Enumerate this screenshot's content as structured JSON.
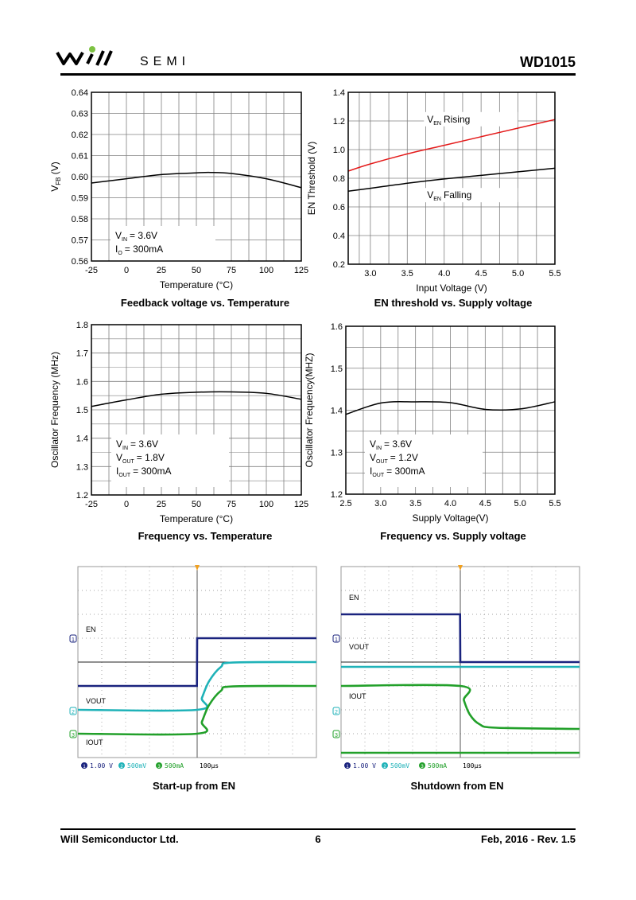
{
  "header": {
    "brand": "SEMI",
    "part_number": "WD1015"
  },
  "colors": {
    "rising": "#e41a1a",
    "curve": "#000000",
    "grid": "#808080",
    "logo_green": "#7dc242",
    "scope_blue": "#1a237e",
    "scope_cyan": "#1fb2b8",
    "scope_green": "#22a02a"
  },
  "chart_data": [
    {
      "id": "fb-temp",
      "type": "line",
      "caption": "Feedback voltage vs. Temperature",
      "xlabel": "Temperature (°C)",
      "ylabel": "V_FB (V)",
      "xlim": [
        -25,
        125
      ],
      "ylim": [
        0.56,
        0.64
      ],
      "xticks": [
        -25,
        0,
        25,
        50,
        75,
        100,
        125
      ],
      "yticks": [
        0.56,
        0.57,
        0.58,
        0.59,
        0.6,
        0.61,
        0.62,
        0.63,
        0.64
      ],
      "xtick_labels": [
        "-25",
        "0",
        "25",
        "50",
        "75",
        "100",
        "125"
      ],
      "ytick_labels": [
        "0.56",
        "0.57",
        "0.58",
        "0.59",
        "0.60",
        "0.61",
        "0.62",
        "0.63",
        "0.64"
      ],
      "series": [
        {
          "name": "V_FB",
          "color": "#000000",
          "x": [
            -25,
            0,
            25,
            50,
            60,
            75,
            100,
            125
          ],
          "y": [
            0.597,
            0.599,
            0.601,
            0.6018,
            0.602,
            0.6015,
            0.599,
            0.5948
          ]
        }
      ],
      "legend": [
        {
          "label": "V",
          "sub": "IN",
          "value": "= 3.6V"
        },
        {
          "label": "I",
          "sub": "O",
          "value": "= 300mA"
        }
      ],
      "series_labels": []
    },
    {
      "id": "en-threshold",
      "type": "line",
      "caption": "EN threshold vs. Supply voltage",
      "xlabel": "Input Voltage (V)",
      "ylabel": "EN Threshold (V)",
      "xlim": [
        2.7,
        5.5
      ],
      "ylim": [
        0.2,
        1.4
      ],
      "xticks": [
        2.7,
        3.0,
        3.5,
        4.0,
        4.5,
        5.0,
        5.5
      ],
      "yticks": [
        0.2,
        0.4,
        0.6,
        0.8,
        1.0,
        1.2,
        1.4
      ],
      "xtick_labels": [
        "",
        "3.0",
        "3.5",
        "4.0",
        "4.5",
        "5.0",
        "5.5"
      ],
      "ytick_labels": [
        "0.2",
        "0.4",
        "0.6",
        "0.8",
        "1.0",
        "1.2",
        "1.4"
      ],
      "series": [
        {
          "name": "V_EN Rising",
          "color": "#e41a1a",
          "x": [
            2.7,
            3.0,
            3.5,
            4.0,
            4.5,
            5.0,
            5.5
          ],
          "y": [
            0.85,
            0.9,
            0.97,
            1.03,
            1.09,
            1.15,
            1.21
          ]
        },
        {
          "name": "V_EN Falling",
          "color": "#000000",
          "x": [
            2.7,
            3.0,
            3.5,
            4.0,
            4.5,
            5.0,
            5.5
          ],
          "y": [
            0.71,
            0.73,
            0.765,
            0.795,
            0.82,
            0.845,
            0.87
          ]
        }
      ],
      "legend": [],
      "series_labels": [
        {
          "label": "V",
          "sub": "EN",
          "value": "Rising"
        },
        {
          "label": "V",
          "sub": "EN",
          "value": "Falling"
        }
      ]
    },
    {
      "id": "freq-temp",
      "type": "line",
      "caption": "Frequency vs. Temperature",
      "xlabel": "Temperature (°C)",
      "ylabel": "Oscillator Frequency (MHz)",
      "xlim": [
        -25,
        125
      ],
      "ylim": [
        1.2,
        1.8
      ],
      "xticks": [
        -25,
        0,
        25,
        50,
        75,
        100,
        125
      ],
      "yticks": [
        1.2,
        1.3,
        1.4,
        1.5,
        1.6,
        1.7,
        1.8
      ],
      "xtick_labels": [
        "-25",
        "0",
        "25",
        "50",
        "75",
        "100",
        "125"
      ],
      "ytick_labels": [
        "1.2",
        "1.3",
        "1.4",
        "1.5",
        "1.6",
        "1.7",
        "1.8"
      ],
      "series": [
        {
          "name": "Fosc",
          "color": "#000000",
          "x": [
            -25,
            0,
            25,
            50,
            75,
            100,
            125
          ],
          "y": [
            1.512,
            1.535,
            1.555,
            1.562,
            1.563,
            1.558,
            1.537
          ]
        }
      ],
      "legend": [
        {
          "label": "V",
          "sub": "IN",
          "value": "= 3.6V"
        },
        {
          "label": "V",
          "sub": "OUT",
          "value": "= 1.8V"
        },
        {
          "label": "I",
          "sub": "OUT",
          "value": "= 300mA"
        }
      ],
      "series_labels": []
    },
    {
      "id": "freq-supply",
      "type": "line",
      "caption": "Frequency vs. Supply voltage",
      "xlabel": "Supply Voltage(V)",
      "ylabel": "Oscillator Frequency(MHZ)",
      "xlim": [
        2.5,
        5.5
      ],
      "ylim": [
        1.2,
        1.6
      ],
      "xticks": [
        2.5,
        3.0,
        3.5,
        4.0,
        4.5,
        5.0,
        5.5
      ],
      "yticks": [
        1.2,
        1.3,
        1.4,
        1.5,
        1.6
      ],
      "xtick_labels": [
        "2.5",
        "3.0",
        "3.5",
        "4.0",
        "4.5",
        "5.0",
        "5.5"
      ],
      "ytick_labels": [
        "1.2",
        "1.3",
        "1.4",
        "1.5",
        "1.6"
      ],
      "series": [
        {
          "name": "Fosc",
          "color": "#000000",
          "x": [
            2.5,
            3.0,
            3.5,
            4.0,
            4.5,
            5.0,
            5.5
          ],
          "y": [
            1.39,
            1.417,
            1.42,
            1.418,
            1.402,
            1.403,
            1.42
          ]
        }
      ],
      "legend": [
        {
          "label": "V",
          "sub": "IN",
          "value": "= 3.6V"
        },
        {
          "label": "V",
          "sub": "OUT",
          "value": "= 1.2V"
        },
        {
          "label": "I",
          "sub": "OUT",
          "value": "= 300mA"
        }
      ],
      "series_labels": []
    },
    {
      "id": "startup",
      "type": "line",
      "caption": "Start-up from EN",
      "trace_labels": [
        "EN",
        "VOUT",
        "IOUT"
      ],
      "channel_numbers": [
        "1",
        "2",
        "3"
      ],
      "scale_labels": [
        "1.00 V",
        "500mV",
        "500mA",
        "100μs"
      ],
      "series": [
        {
          "name": "EN",
          "x": [
            0,
            4.99,
            5.0,
            10
          ],
          "y": [
            -1.0,
            -1.0,
            1.0,
            1.0
          ]
        },
        {
          "name": "VOUT",
          "x": [
            0,
            5.0,
            5.2,
            5.5,
            6.0,
            6.5,
            10
          ],
          "y": [
            -2.0,
            -2.0,
            -1.5,
            -0.8,
            -0.2,
            -0.02,
            0.0
          ]
        },
        {
          "name": "IOUT",
          "x": [
            0,
            5.0,
            5.2,
            5.5,
            6.0,
            6.5,
            10
          ],
          "y": [
            -3.0,
            -3.0,
            -2.5,
            -1.8,
            -1.2,
            -1.02,
            -1.0
          ]
        }
      ]
    },
    {
      "id": "shutdown",
      "type": "line",
      "caption": "Shutdown from EN",
      "trace_labels": [
        "EN",
        "VOUT",
        "IOUT"
      ],
      "channel_numbers": [
        "1",
        "2",
        "3"
      ],
      "scale_labels": [
        "1.00 V",
        "500mV",
        "500mA",
        "100μs"
      ],
      "series": [
        {
          "name": "EN",
          "x": [
            0,
            4.99,
            5.0,
            10
          ],
          "y": [
            2.0,
            2.0,
            0.0,
            0.0
          ]
        },
        {
          "name": "VOUT",
          "x": [
            0,
            4.99,
            5.0,
            10
          ],
          "y": [
            -0.2,
            -0.2,
            -0.2,
            -0.2
          ]
        },
        {
          "name": "IOUT",
          "x": [
            0,
            5.0,
            5.15,
            5.4,
            5.8,
            6.5,
            10
          ],
          "y": [
            -1.0,
            -1.0,
            -1.6,
            -2.2,
            -2.6,
            -2.75,
            -2.8
          ]
        },
        {
          "name": "IOUT-low",
          "x": [
            0,
            5.0,
            5.15,
            5.4,
            5.8,
            6.5,
            10
          ],
          "y": [
            -3.8,
            -3.8,
            -3.8,
            -3.8,
            -3.8,
            -3.8,
            -3.8
          ]
        }
      ]
    }
  ],
  "footer": {
    "company": "Will Semiconductor Ltd.",
    "page": "6",
    "revision": "Feb, 2016 - Rev. 1.5"
  }
}
